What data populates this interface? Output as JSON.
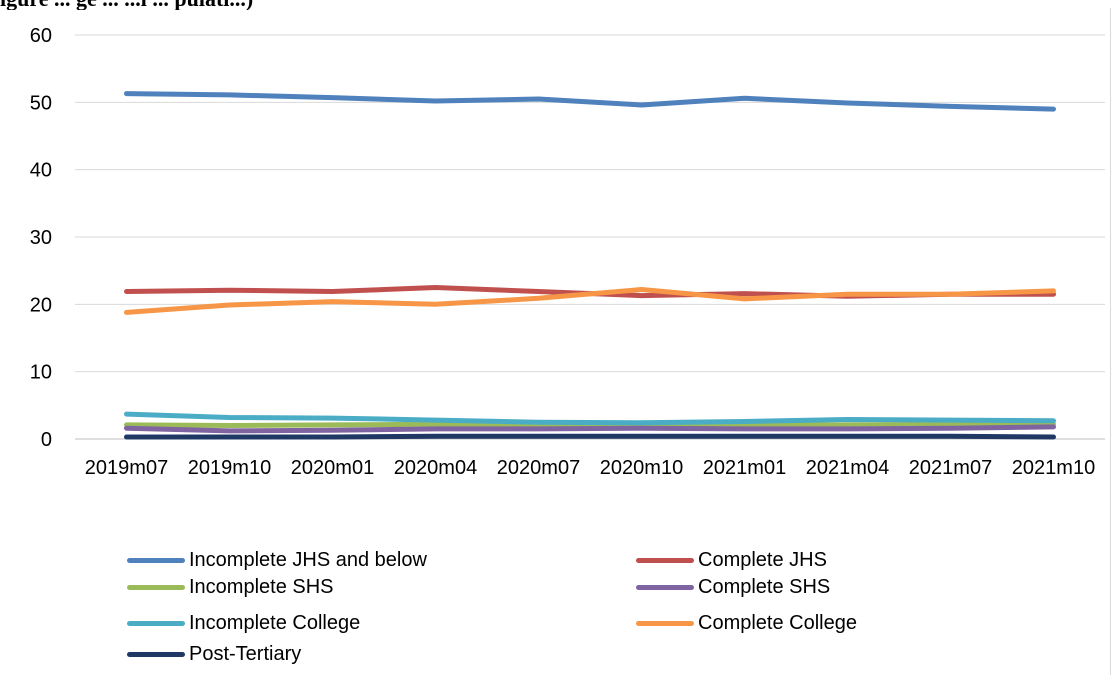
{
  "header": {
    "title_fragment": "igure ... ge ... ...l ... pulati...)"
  },
  "chart_data": {
    "type": "line",
    "title": "",
    "xlabel": "",
    "ylabel": "",
    "ylim": [
      0,
      60
    ],
    "yticks": [
      0,
      10,
      20,
      30,
      40,
      50,
      60
    ],
    "grid": true,
    "legend_position": "bottom",
    "categories": [
      "2019m07",
      "2019m10",
      "2020m01",
      "2020m04",
      "2020m07",
      "2020m10",
      "2021m01",
      "2021m04",
      "2021m07",
      "2021m10"
    ],
    "series": [
      {
        "name": "Incomplete JHS and below",
        "color": "#4f81bd",
        "values": [
          51.3,
          51.1,
          50.7,
          50.2,
          50.5,
          49.6,
          50.6,
          49.9,
          49.4,
          49.0
        ]
      },
      {
        "name": "Complete JHS",
        "color": "#c0504d",
        "values": [
          21.9,
          22.1,
          21.9,
          22.5,
          21.9,
          21.3,
          21.6,
          21.2,
          21.5,
          21.5
        ]
      },
      {
        "name": "Incomplete SHS",
        "color": "#9bbb59",
        "values": [
          2.1,
          2.0,
          2.1,
          2.2,
          2.0,
          2.0,
          2.1,
          2.1,
          2.2,
          2.2
        ]
      },
      {
        "name": "Complete SHS",
        "color": "#8064a2",
        "values": [
          1.6,
          1.2,
          1.3,
          1.5,
          1.5,
          1.6,
          1.5,
          1.5,
          1.6,
          1.8
        ]
      },
      {
        "name": "Incomplete College",
        "color": "#4bacc6",
        "values": [
          3.7,
          3.2,
          3.1,
          2.8,
          2.5,
          2.4,
          2.6,
          2.9,
          2.8,
          2.7
        ]
      },
      {
        "name": "Complete College",
        "color": "#f79646",
        "values": [
          18.8,
          19.9,
          20.4,
          20.0,
          20.9,
          22.2,
          20.8,
          21.5,
          21.5,
          22.0
        ]
      },
      {
        "name": "Post-Tertiary",
        "color": "#1f3864",
        "values": [
          0.3,
          0.3,
          0.3,
          0.4,
          0.4,
          0.4,
          0.4,
          0.4,
          0.4,
          0.3
        ]
      }
    ]
  }
}
